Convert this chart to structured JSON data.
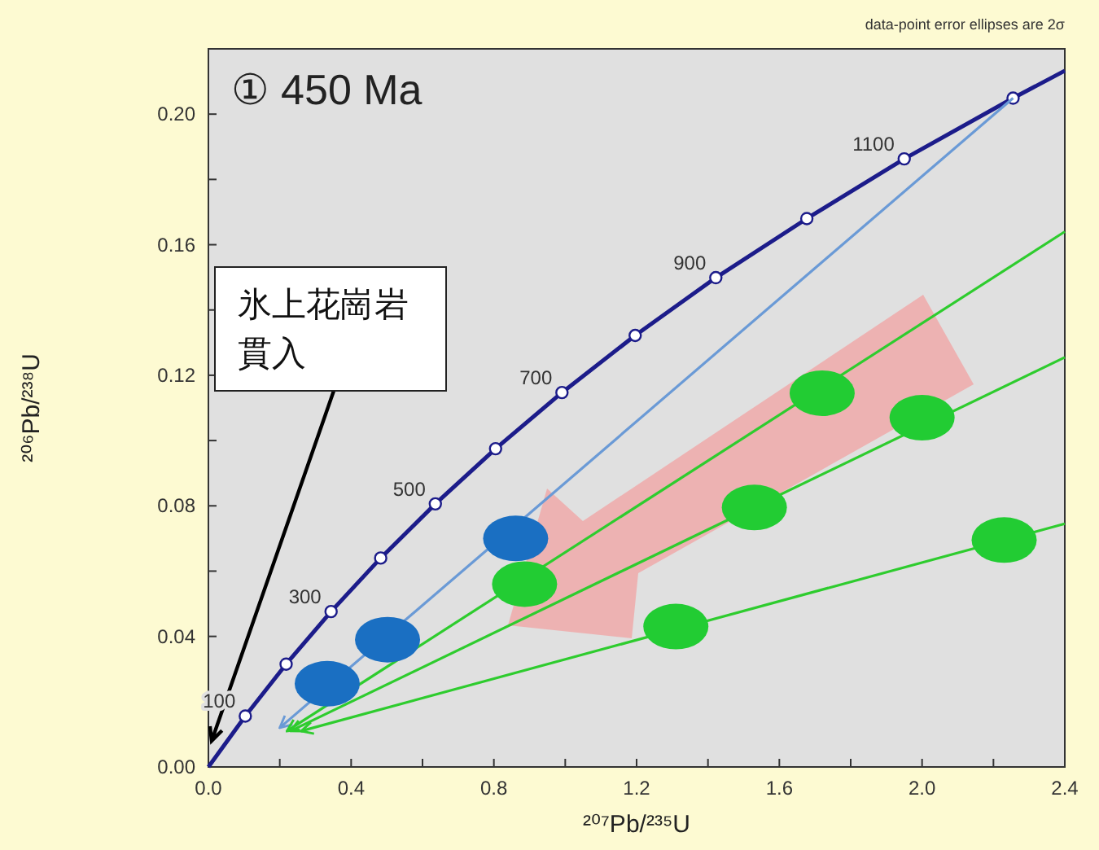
{
  "chart_data": {
    "type": "line",
    "title": "① 450 Ma",
    "xlabel": "²⁰⁷Pb/²³⁵U",
    "ylabel": "²⁰⁶Pb/²³⁸U",
    "xlim": [
      0,
      2.4
    ],
    "ylim": [
      0,
      0.22
    ],
    "xticks": [
      {
        "value": 0,
        "label": "0.0"
      },
      {
        "value": 0.2,
        "label": null
      },
      {
        "value": 0.4,
        "label": "0.4"
      },
      {
        "value": 0.6,
        "label": null
      },
      {
        "value": 0.8,
        "label": "0.8"
      },
      {
        "value": 1.0,
        "label": null
      },
      {
        "value": 1.2,
        "label": "1.2"
      },
      {
        "value": 1.4,
        "label": null
      },
      {
        "value": 1.6,
        "label": "1.6"
      },
      {
        "value": 1.8,
        "label": null
      },
      {
        "value": 2.0,
        "label": "2.0"
      },
      {
        "value": 2.2,
        "label": null
      },
      {
        "value": 2.4,
        "label": "2.4"
      }
    ],
    "yticks": [
      {
        "value": 0,
        "label": "0.00"
      },
      {
        "value": 0.02,
        "label": null
      },
      {
        "value": 0.04,
        "label": "0.04"
      },
      {
        "value": 0.06,
        "label": null
      },
      {
        "value": 0.08,
        "label": "0.08"
      },
      {
        "value": 0.1,
        "label": null
      },
      {
        "value": 0.12,
        "label": "0.12"
      },
      {
        "value": 0.14,
        "label": null
      },
      {
        "value": 0.16,
        "label": "0.16"
      },
      {
        "value": 0.18,
        "label": null
      },
      {
        "value": 0.2,
        "label": "0.20"
      }
    ],
    "series": [
      {
        "color": "#1c1c8a",
        "x": [
          0,
          0.1034,
          0.2178,
          0.3438,
          0.4828,
          0.636,
          0.8048,
          0.9908,
          1.196,
          1.422,
          1.677,
          1.95,
          2.255,
          2.4
        ],
        "values": [
          0,
          0.0156,
          0.0315,
          0.0476,
          0.064,
          0.0806,
          0.0975,
          0.1147,
          0.1322,
          0.1499,
          0.168,
          0.1863,
          0.2049,
          0.2133
        ]
      },
      {
        "type": "scatter",
        "marker": "circle",
        "color": "#ffffff",
        "x": [
          0.1034,
          0.2178,
          0.3438,
          0.4828,
          0.636,
          0.8048,
          0.9908,
          1.196,
          1.422,
          1.677,
          1.95,
          2.255
        ],
        "values": [
          0.0156,
          0.0315,
          0.0476,
          0.064,
          0.0806,
          0.0975,
          0.1147,
          0.1322,
          0.1499,
          0.168,
          0.1863,
          0.2049
        ]
      },
      {
        "color": "#6a9ad6",
        "x": [
          0.2,
          2.255
        ],
        "values": [
          0.012,
          0.2049
        ]
      },
      {
        "color": "#2ecc2e",
        "x": [
          0.22,
          2.4
        ],
        "values": [
          0.011,
          0.164
        ]
      },
      {
        "color": "#2ecc2e",
        "x": [
          0.23,
          2.4
        ],
        "values": [
          0.011,
          0.1255
        ]
      },
      {
        "color": "#2ecc2e",
        "x": [
          0.26,
          2.4
        ],
        "values": [
          0.011,
          0.0745
        ]
      },
      {
        "type": "scatter",
        "marker": "circle",
        "color": "#1a6fc2",
        "x": [
          0.333,
          0.502,
          0.861
        ],
        "values": [
          0.0255,
          0.039,
          0.07
        ]
      },
      {
        "type": "scatter",
        "marker": "circle",
        "color": "#22cc33",
        "x": [
          0.886,
          1.31,
          1.53,
          1.72,
          2.0,
          2.23
        ],
        "values": [
          0.056,
          0.043,
          0.0795,
          0.1145,
          0.107,
          0.0695
        ]
      }
    ],
    "annotations": [
      "data-point error ellipses are 2σ",
      "氷上花崗岩貫入",
      {
        "text": "100",
        "x": 0.1034,
        "y": 0.0156
      },
      {
        "text": "300",
        "x": 0.3438,
        "y": 0.0476
      },
      {
        "text": "500",
        "x": 0.636,
        "y": 0.0806
      },
      {
        "text": "700",
        "x": 0.9908,
        "y": 0.1147
      },
      {
        "text": "900",
        "x": 1.422,
        "y": 0.1499
      },
      {
        "text": "1100",
        "x": 1.95,
        "y": 0.1863
      }
    ]
  }
}
